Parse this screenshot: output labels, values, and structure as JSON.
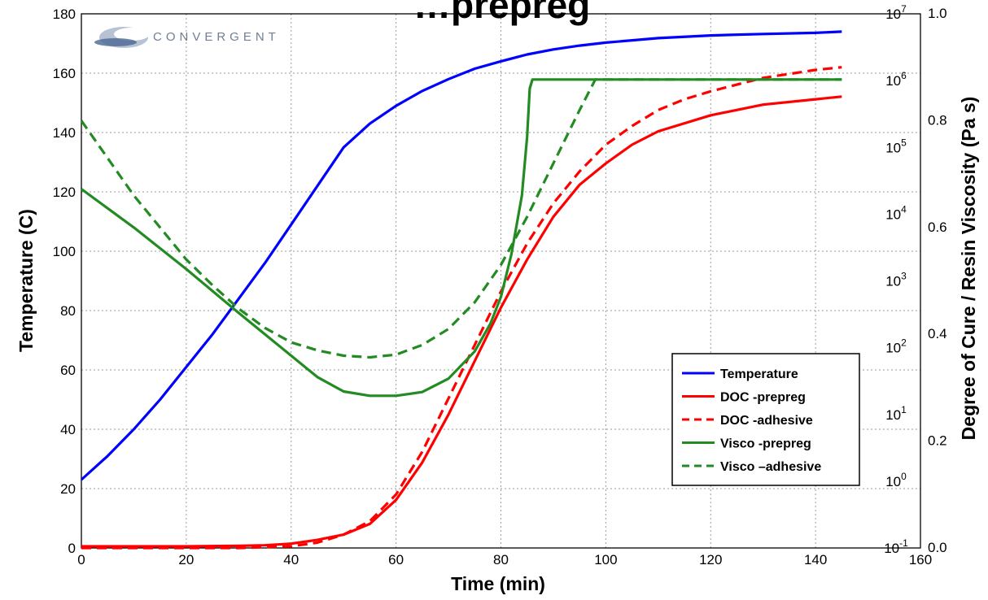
{
  "chart_data": {
    "type": "line",
    "title": "…prepreg",
    "xlabel": "Time (min)",
    "ylabel": "Temperature (C)",
    "y2label": "Degree of Cure / Resin Viscosity (Pa s)",
    "xlim": [
      0,
      160
    ],
    "ylim": [
      0,
      180
    ],
    "y2lim": [
      0.0,
      1.0
    ],
    "y3lim_log": [
      0.1,
      10000000
    ],
    "grid": true,
    "legend_position": "lower-right",
    "x_ticks": [
      "0",
      "20",
      "40",
      "60",
      "80",
      "100",
      "120",
      "140",
      "160"
    ],
    "y_ticks": [
      "0",
      "20",
      "40",
      "60",
      "80",
      "100",
      "120",
      "140",
      "160",
      "180"
    ],
    "y2_ticks": [
      "0.0",
      "0.2",
      "0.4",
      "0.6",
      "0.8",
      "1.0"
    ],
    "y3_ticks": [
      {
        "base": "10",
        "exp": "-1"
      },
      {
        "base": "10",
        "exp": "0"
      },
      {
        "base": "10",
        "exp": "1"
      },
      {
        "base": "10",
        "exp": "2"
      },
      {
        "base": "10",
        "exp": "3"
      },
      {
        "base": "10",
        "exp": "4"
      },
      {
        "base": "10",
        "exp": "5"
      },
      {
        "base": "10",
        "exp": "6"
      },
      {
        "base": "10",
        "exp": "7"
      }
    ],
    "series": [
      {
        "name": "Temperature",
        "axis": "left",
        "color": "#0000ff",
        "dash": "solid",
        "x": [
          0,
          5,
          10,
          15,
          20,
          25,
          30,
          35,
          40,
          45,
          50,
          55,
          60,
          65,
          70,
          75,
          80,
          85,
          90,
          95,
          100,
          110,
          120,
          130,
          140,
          145
        ],
        "y": [
          23,
          31,
          40,
          50,
          61,
          72,
          84,
          96,
          109,
          122,
          135,
          143,
          149,
          154,
          158,
          161.5,
          164,
          166.3,
          168,
          169.3,
          170.3,
          171.8,
          172.7,
          173.2,
          173.6,
          174
        ]
      },
      {
        "name": "DOC -prepreg",
        "axis": "right",
        "color": "#ff0000",
        "dash": "solid",
        "x": [
          0,
          20,
          30,
          35,
          40,
          45,
          50,
          55,
          60,
          65,
          70,
          75,
          80,
          85,
          90,
          95,
          100,
          105,
          110,
          120,
          130,
          140,
          145
        ],
        "y": [
          0.003,
          0.003,
          0.004,
          0.005,
          0.008,
          0.015,
          0.025,
          0.045,
          0.09,
          0.16,
          0.25,
          0.35,
          0.45,
          0.54,
          0.62,
          0.68,
          0.72,
          0.755,
          0.78,
          0.81,
          0.83,
          0.84,
          0.845
        ]
      },
      {
        "name": "DOC -adhesive",
        "axis": "right",
        "color": "#ff0000",
        "dash": "dashed",
        "x": [
          0,
          30,
          40,
          45,
          50,
          55,
          60,
          65,
          70,
          75,
          80,
          85,
          90,
          95,
          100,
          105,
          110,
          115,
          120,
          130,
          140,
          145
        ],
        "y": [
          0.0,
          0.0,
          0.003,
          0.01,
          0.025,
          0.05,
          0.1,
          0.18,
          0.28,
          0.38,
          0.48,
          0.57,
          0.645,
          0.705,
          0.755,
          0.79,
          0.82,
          0.84,
          0.855,
          0.88,
          0.895,
          0.9
        ]
      },
      {
        "name": "Visco -prepreg",
        "axis": "right",
        "color": "#228b22",
        "dash": "solid",
        "x": [
          0,
          10,
          20,
          30,
          40,
          45,
          50,
          55,
          60,
          65,
          70,
          75,
          78,
          80,
          82,
          84,
          85,
          85.5,
          86,
          100,
          120,
          145
        ],
        "y": [
          0.672,
          0.6,
          0.522,
          0.44,
          0.36,
          0.32,
          0.293,
          0.285,
          0.285,
          0.292,
          0.317,
          0.368,
          0.42,
          0.47,
          0.55,
          0.66,
          0.77,
          0.86,
          0.877,
          0.877,
          0.877,
          0.877
        ]
      },
      {
        "name": "Visco –adhesive",
        "axis": "right",
        "color": "#228b22",
        "dash": "dashed",
        "x": [
          0,
          5,
          10,
          15,
          20,
          25,
          30,
          35,
          40,
          45,
          50,
          55,
          60,
          65,
          70,
          75,
          80,
          85,
          90,
          95,
          98,
          110,
          130,
          145
        ],
        "y": [
          0.8,
          0.73,
          0.66,
          0.6,
          0.54,
          0.492,
          0.448,
          0.412,
          0.385,
          0.37,
          0.36,
          0.357,
          0.362,
          0.38,
          0.41,
          0.46,
          0.53,
          0.62,
          0.72,
          0.82,
          0.877,
          0.877,
          0.877,
          0.877
        ]
      }
    ]
  },
  "logo": {
    "text": "CONVERGENT"
  }
}
